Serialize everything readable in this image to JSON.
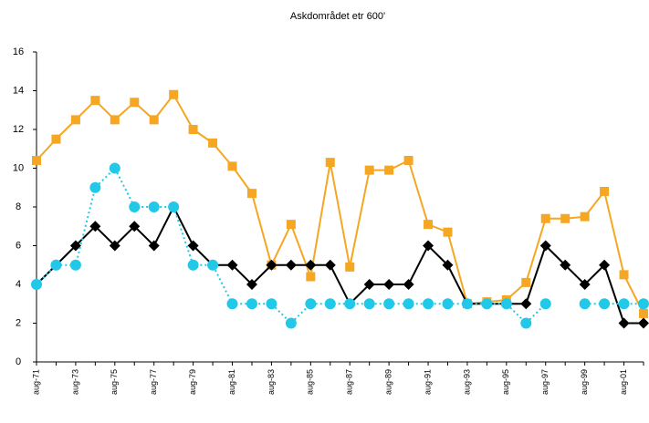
{
  "chart_data": {
    "type": "line",
    "title": "Askdområdet etr 600'",
    "categories": [
      "aug-71",
      null,
      "aug-73",
      null,
      "aug-75",
      null,
      "aug-77",
      null,
      "aug-79",
      null,
      "aug-81",
      null,
      "aug-83",
      null,
      "aug-85",
      null,
      "aug-87",
      null,
      "aug-89",
      null,
      "aug-91",
      null,
      "aug-93",
      null,
      "aug-95",
      null,
      "aug-97",
      null,
      "aug-99",
      null,
      "aug-01",
      null
    ],
    "series": [
      {
        "color": "#f5a623",
        "marker": "square",
        "dash": false,
        "values": [
          10.4,
          11.5,
          12.5,
          13.5,
          12.5,
          13.4,
          12.5,
          13.8,
          12.0,
          11.3,
          10.1,
          8.7,
          5.0,
          7.1,
          4.4,
          10.3,
          4.9,
          9.9,
          9.9,
          10.4,
          7.1,
          6.7,
          3.0,
          3.1,
          3.2,
          4.1,
          7.4,
          7.4,
          7.5,
          8.8,
          4.5,
          2.5
        ]
      },
      {
        "color": "#000000",
        "marker": "diamond",
        "dash": false,
        "values": [
          4,
          5,
          6,
          7,
          6,
          7,
          6,
          8,
          6,
          5,
          5,
          4,
          5,
          5,
          5,
          5,
          3,
          4,
          4,
          4,
          6,
          5,
          3,
          3,
          3,
          3,
          6,
          5,
          4,
          5,
          2,
          2
        ]
      },
      {
        "color": "#22c8e8",
        "marker": "circle",
        "dash": true,
        "values": [
          4,
          5,
          5,
          9,
          10,
          8,
          8,
          8,
          5,
          5,
          3,
          3,
          3,
          2,
          3,
          3,
          3,
          3,
          3,
          3,
          3,
          3,
          3,
          3,
          3,
          2,
          3,
          null,
          3,
          3,
          3,
          3
        ]
      }
    ],
    "ylim": [
      0,
      16
    ],
    "yticks": [
      0,
      2,
      4,
      6,
      8,
      10,
      12,
      14,
      16
    ]
  }
}
